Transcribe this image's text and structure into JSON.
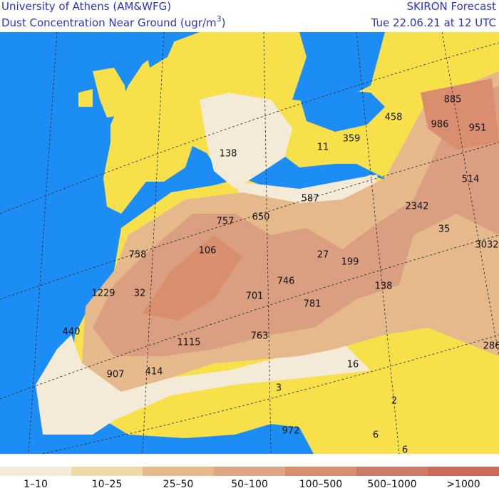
{
  "header": {
    "left_line1": "University of Athens (AM&WFG)",
    "left_line2": "Dust Concentration Near Ground (ugr/m",
    "left_line2_sup": "3",
    "left_line2_end": ")",
    "right_line1": "SKIRON Forecast",
    "right_line2": "Tue 22.06.21 at 12 UTC"
  },
  "map_labels": [
    "885",
    "458",
    "986",
    "951",
    "359",
    "11",
    "138",
    "514",
    "587",
    "2342",
    "757",
    "650",
    "35",
    "106",
    "3032",
    "758",
    "27",
    "199",
    "746",
    "138",
    "1229",
    "32",
    "701",
    "781",
    "440",
    "763",
    "1115",
    "286",
    "16",
    "907",
    "414",
    "3",
    "2",
    "972",
    "6",
    "6"
  ],
  "legend": {
    "items": [
      {
        "label": "1–10",
        "color": "#f4ead8"
      },
      {
        "label": "10–25",
        "color": "#eed9a9"
      },
      {
        "label": "25–50",
        "color": "#e6b98c"
      },
      {
        "label": "50–100",
        "color": "#dca682"
      },
      {
        "label": "100–500",
        "color": "#d98f6f"
      },
      {
        "label": "500–1000",
        "color": "#cb7b67"
      },
      {
        "label": ">1000",
        "color": "#cc6a58"
      }
    ]
  }
}
